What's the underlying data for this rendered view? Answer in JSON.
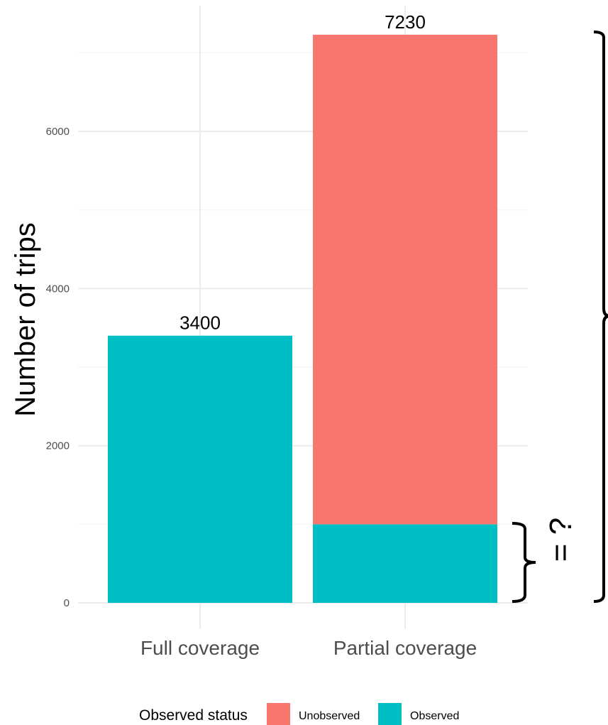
{
  "chart_data": {
    "type": "bar",
    "stacked": true,
    "categories": [
      "Full coverage",
      "Partial coverage"
    ],
    "series": [
      {
        "name": "Unobserved",
        "values": [
          0,
          6230
        ],
        "color": "#F8766D"
      },
      {
        "name": "Observed",
        "values": [
          3400,
          1000
        ],
        "color": "#00BFC4"
      }
    ],
    "totals": [
      3400,
      7230
    ],
    "data_labels": [
      "3400",
      "7230"
    ],
    "ylabel": "Number of trips",
    "xlabel": "",
    "ylim": [
      0,
      7230
    ],
    "yticks": [
      0,
      2000,
      4000,
      6000
    ],
    "grid": true,
    "legend": {
      "title": "Observed status",
      "position": "bottom",
      "items": [
        "Unobserved",
        "Observed"
      ]
    },
    "annotation": {
      "text": "= ?",
      "description": "brace comparing observed share of partial coverage to its total"
    }
  }
}
